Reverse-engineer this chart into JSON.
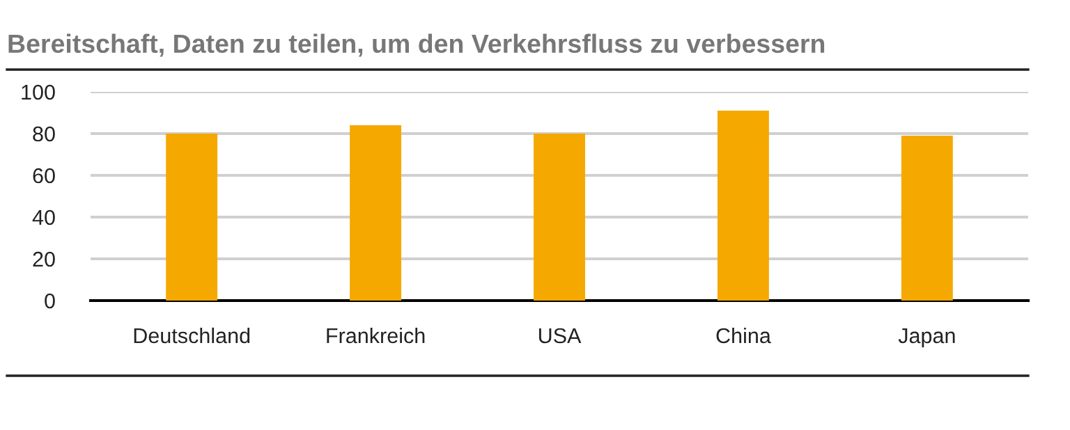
{
  "chart_data": {
    "type": "bar",
    "title": "Bereitschaft, Daten zu teilen, um den Verkehrsfluss zu verbessern",
    "categories": [
      "Deutschland",
      "Frankreich",
      "USA",
      "China",
      "Japan"
    ],
    "values": [
      80,
      84,
      80,
      91,
      79
    ],
    "color": "#f5a800",
    "ylim": [
      0,
      100
    ],
    "yticks": [
      0,
      20,
      40,
      60,
      80,
      100
    ],
    "grid": "y"
  }
}
